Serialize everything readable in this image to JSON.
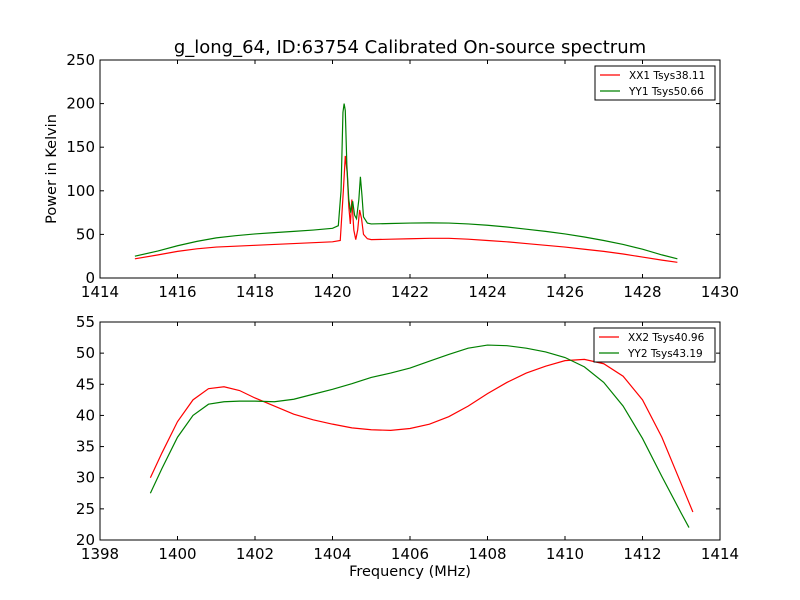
{
  "chart_data": [
    {
      "type": "line",
      "title": "g_long_64, ID:63754 Calibrated On-source spectrum",
      "xlabel": "",
      "ylabel": "Power in Kelvin",
      "xlim": [
        1414,
        1430
      ],
      "ylim": [
        0,
        250
      ],
      "xticks": [
        "1414",
        "1416",
        "1418",
        "1420",
        "1422",
        "1424",
        "1426",
        "1428",
        "1430"
      ],
      "yticks": [
        "0",
        "50",
        "100",
        "150",
        "200",
        "250"
      ],
      "grid": false,
      "legend_position": "top-right",
      "series": [
        {
          "name": "XX1 Tsys38.11",
          "color": "#ff0000",
          "points": [
            [
              1414.9,
              22
            ],
            [
              1415.5,
              26.5
            ],
            [
              1416,
              30.5
            ],
            [
              1416.5,
              33.5
            ],
            [
              1417,
              35.5
            ],
            [
              1417.5,
              36.5
            ],
            [
              1418,
              37.5
            ],
            [
              1418.5,
              38.5
            ],
            [
              1419,
              39.5
            ],
            [
              1419.5,
              40.5
            ],
            [
              1420,
              41.5
            ],
            [
              1420.2,
              43
            ],
            [
              1420.28,
              100
            ],
            [
              1420.33,
              140
            ],
            [
              1420.38,
              120
            ],
            [
              1420.42,
              82
            ],
            [
              1420.46,
              62
            ],
            [
              1420.5,
              90
            ],
            [
              1420.55,
              55
            ],
            [
              1420.6,
              44
            ],
            [
              1420.65,
              55
            ],
            [
              1420.7,
              78
            ],
            [
              1420.75,
              68
            ],
            [
              1420.8,
              50
            ],
            [
              1420.9,
              45
            ],
            [
              1421,
              44
            ],
            [
              1421.5,
              44.5
            ],
            [
              1422,
              45
            ],
            [
              1422.5,
              45.5
            ],
            [
              1423,
              45.5
            ],
            [
              1423.5,
              44.5
            ],
            [
              1424,
              43
            ],
            [
              1424.5,
              41.5
            ],
            [
              1425,
              39.5
            ],
            [
              1425.5,
              37.5
            ],
            [
              1426,
              35.5
            ],
            [
              1426.5,
              33
            ],
            [
              1427,
              30.5
            ],
            [
              1427.5,
              27.5
            ],
            [
              1428,
              24
            ],
            [
              1428.5,
              20.5
            ],
            [
              1428.9,
              18
            ]
          ]
        },
        {
          "name": "YY1 Tsys50.66",
          "color": "#008000",
          "points": [
            [
              1414.9,
              25
            ],
            [
              1415.5,
              31
            ],
            [
              1416,
              37
            ],
            [
              1416.5,
              42
            ],
            [
              1417,
              46
            ],
            [
              1417.5,
              48.5
            ],
            [
              1418,
              50.5
            ],
            [
              1418.5,
              52
            ],
            [
              1419,
              53.5
            ],
            [
              1419.5,
              55
            ],
            [
              1420,
              57
            ],
            [
              1420.15,
              60
            ],
            [
              1420.22,
              100
            ],
            [
              1420.27,
              190
            ],
            [
              1420.3,
              200
            ],
            [
              1420.33,
              192
            ],
            [
              1420.37,
              130
            ],
            [
              1420.42,
              90
            ],
            [
              1420.47,
              75
            ],
            [
              1420.52,
              88
            ],
            [
              1420.57,
              72
            ],
            [
              1420.62,
              68
            ],
            [
              1420.68,
              90
            ],
            [
              1420.72,
              116
            ],
            [
              1420.76,
              95
            ],
            [
              1420.8,
              70
            ],
            [
              1420.9,
              63
            ],
            [
              1421,
              62
            ],
            [
              1421.5,
              62.5
            ],
            [
              1422,
              63
            ],
            [
              1422.5,
              63.2
            ],
            [
              1423,
              63
            ],
            [
              1423.5,
              62
            ],
            [
              1424,
              60.5
            ],
            [
              1424.5,
              58.5
            ],
            [
              1425,
              56
            ],
            [
              1425.5,
              53.5
            ],
            [
              1426,
              50.5
            ],
            [
              1426.5,
              47
            ],
            [
              1427,
              43
            ],
            [
              1427.5,
              38.5
            ],
            [
              1428,
              33
            ],
            [
              1428.5,
              26.5
            ],
            [
              1428.9,
              22
            ]
          ]
        }
      ]
    },
    {
      "type": "line",
      "title": "",
      "xlabel": "Frequency (MHz)",
      "ylabel": "",
      "xlim": [
        1398,
        1414
      ],
      "ylim": [
        20,
        55
      ],
      "xticks": [
        "1398",
        "1400",
        "1402",
        "1404",
        "1406",
        "1408",
        "1410",
        "1412",
        "1414"
      ],
      "yticks": [
        "20",
        "25",
        "30",
        "35",
        "40",
        "45",
        "50",
        "55"
      ],
      "grid": false,
      "legend_position": "top-right",
      "series": [
        {
          "name": "XX2 Tsys40.96",
          "color": "#ff0000",
          "points": [
            [
              1399.3,
              30
            ],
            [
              1399.6,
              34
            ],
            [
              1400,
              39
            ],
            [
              1400.4,
              42.5
            ],
            [
              1400.8,
              44.3
            ],
            [
              1401.2,
              44.6
            ],
            [
              1401.6,
              44
            ],
            [
              1402,
              42.8
            ],
            [
              1402.5,
              41.5
            ],
            [
              1403,
              40.2
            ],
            [
              1403.5,
              39.3
            ],
            [
              1404,
              38.6
            ],
            [
              1404.5,
              38
            ],
            [
              1405,
              37.7
            ],
            [
              1405.5,
              37.6
            ],
            [
              1406,
              37.9
            ],
            [
              1406.5,
              38.6
            ],
            [
              1407,
              39.8
            ],
            [
              1407.5,
              41.5
            ],
            [
              1408,
              43.5
            ],
            [
              1408.5,
              45.3
            ],
            [
              1409,
              46.8
            ],
            [
              1409.5,
              47.9
            ],
            [
              1410,
              48.8
            ],
            [
              1410.5,
              49
            ],
            [
              1411,
              48.3
            ],
            [
              1411.5,
              46.3
            ],
            [
              1412,
              42.5
            ],
            [
              1412.5,
              36.5
            ],
            [
              1413,
              29
            ],
            [
              1413.3,
              24.5
            ]
          ]
        },
        {
          "name": "YY2 Tsys43.19",
          "color": "#008000",
          "points": [
            [
              1399.3,
              27.5
            ],
            [
              1399.6,
              31.5
            ],
            [
              1400,
              36.5
            ],
            [
              1400.4,
              40
            ],
            [
              1400.8,
              41.8
            ],
            [
              1401.2,
              42.2
            ],
            [
              1401.6,
              42.3
            ],
            [
              1402,
              42.3
            ],
            [
              1402.5,
              42.2
            ],
            [
              1403,
              42.6
            ],
            [
              1403.5,
              43.4
            ],
            [
              1404,
              44.2
            ],
            [
              1404.5,
              45.1
            ],
            [
              1405,
              46.1
            ],
            [
              1405.5,
              46.8
            ],
            [
              1406,
              47.6
            ],
            [
              1406.5,
              48.7
            ],
            [
              1407,
              49.8
            ],
            [
              1407.5,
              50.8
            ],
            [
              1408,
              51.3
            ],
            [
              1408.5,
              51.2
            ],
            [
              1409,
              50.8
            ],
            [
              1409.5,
              50.2
            ],
            [
              1410,
              49.3
            ],
            [
              1410.5,
              47.8
            ],
            [
              1411,
              45.3
            ],
            [
              1411.5,
              41.5
            ],
            [
              1412,
              36.3
            ],
            [
              1412.5,
              30.2
            ],
            [
              1413,
              24.3
            ],
            [
              1413.2,
              22
            ]
          ]
        }
      ]
    }
  ]
}
